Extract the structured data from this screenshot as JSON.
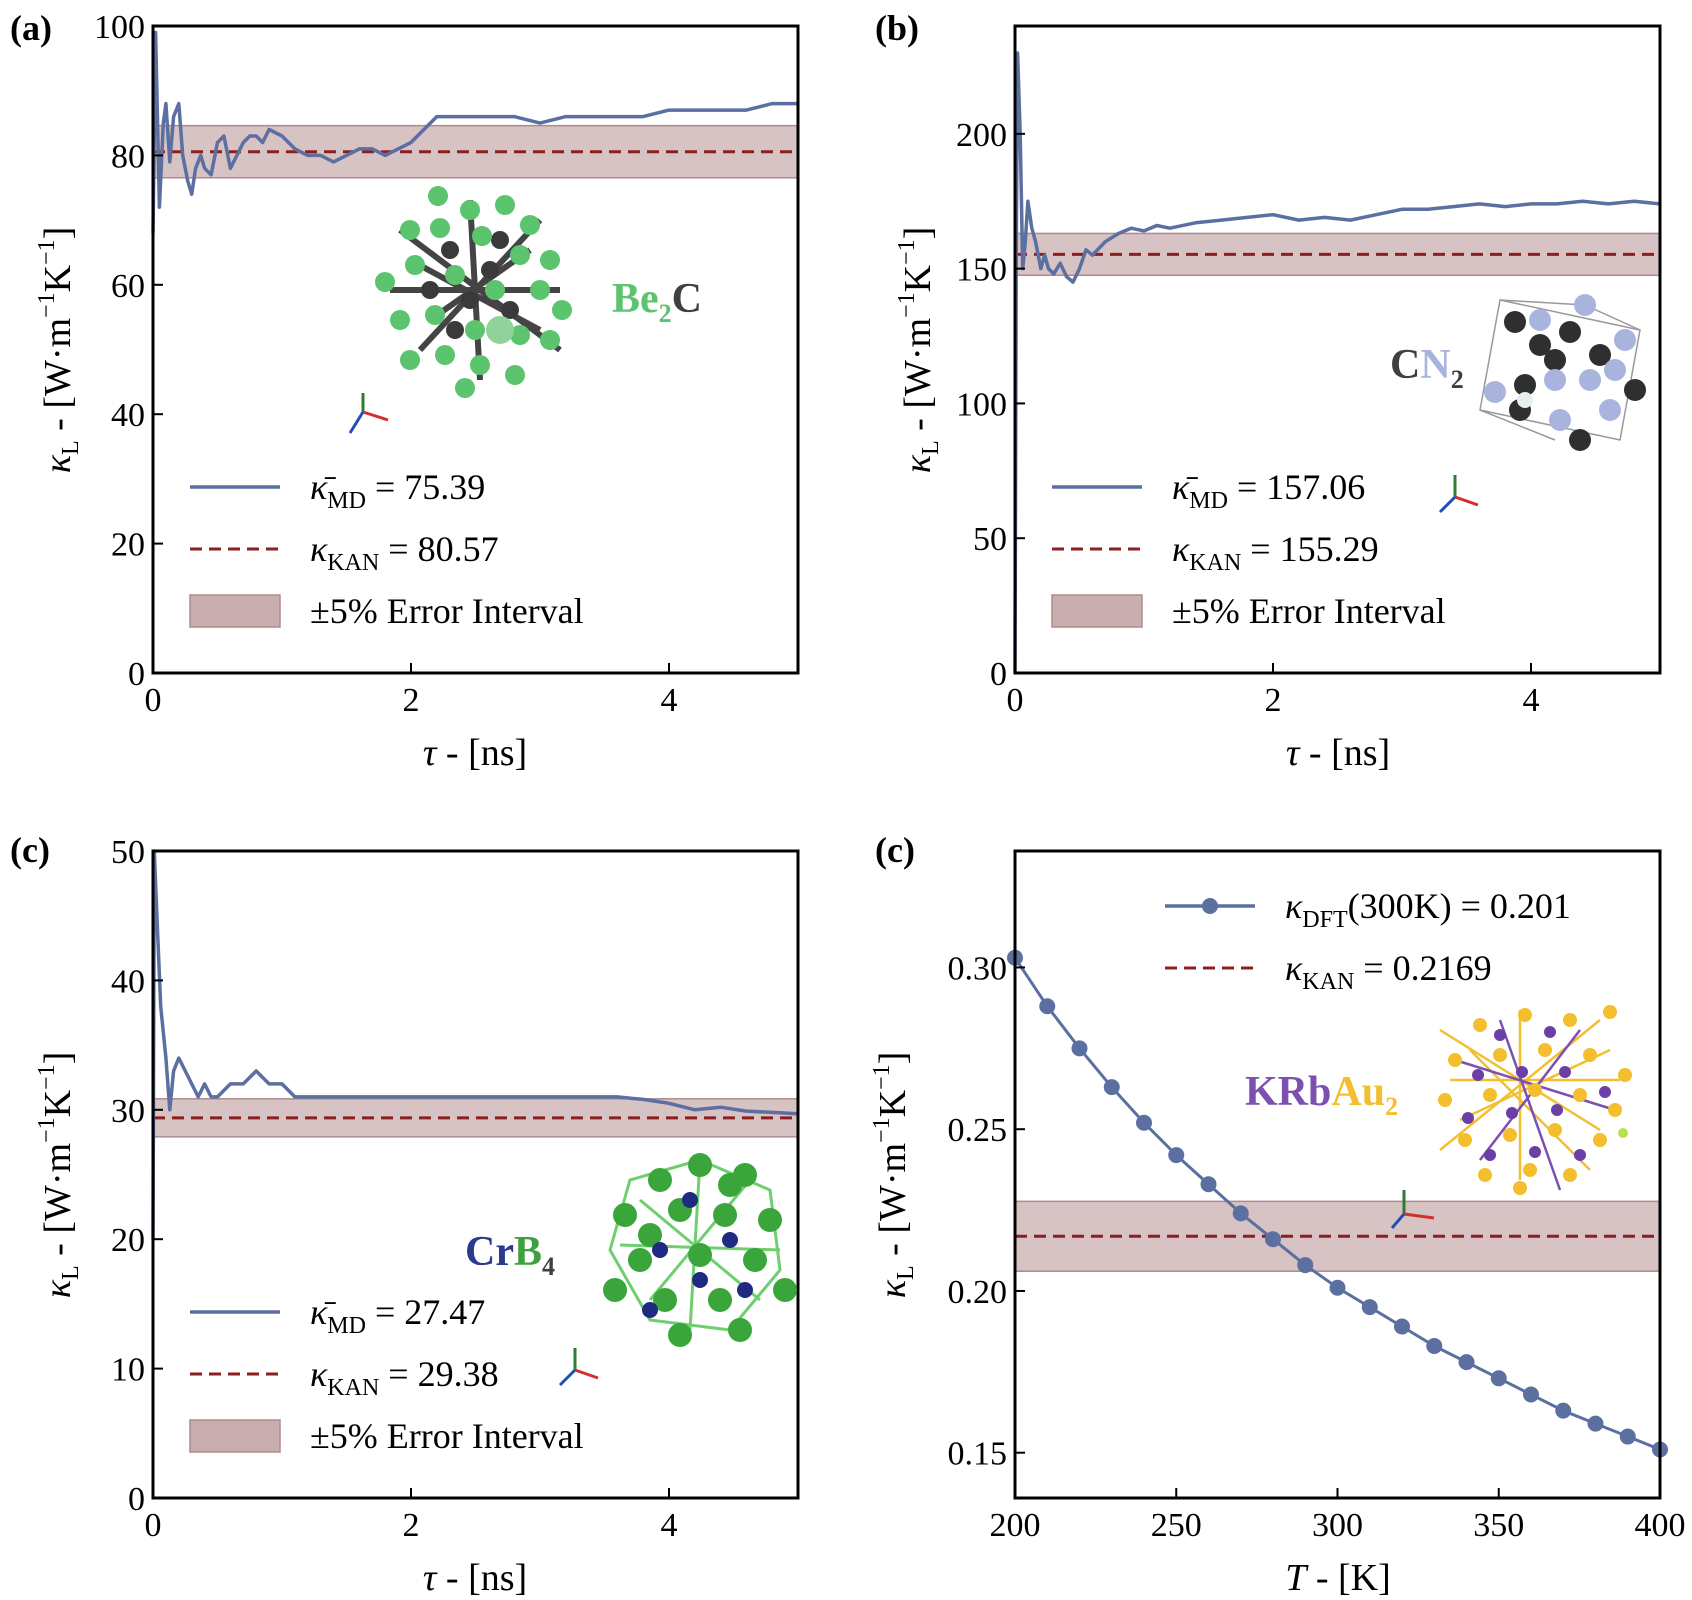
{
  "colors": {
    "md_line": "#5b6fa0",
    "kan_line": "#8b1f1f",
    "band_fill": "#c9aeb0",
    "band_stroke": "#b08a8d",
    "green_atom": "#5cc46f",
    "dark_atom": "#404040",
    "light_blue_atom": "#a9b4de",
    "purple_atom": "#7c4fb0",
    "gold_atom": "#f3bf2f"
  },
  "chart_data": [
    {
      "id": "a",
      "type": "line",
      "panel_label": "(a)",
      "xlabel_sym": "τ",
      "xlabel_rest": " - [ns]",
      "ylabel": "κL - [W·m−1K−1]",
      "xlim": [
        0,
        5
      ],
      "ylim": [
        0,
        100
      ],
      "xticks": [
        0,
        2,
        4
      ],
      "yticks": [
        0,
        20,
        40,
        60,
        80,
        100
      ],
      "xtick_labels": [
        "0",
        "2",
        "4"
      ],
      "ytick_labels": [
        "0",
        "20",
        "40",
        "60",
        "80",
        "100"
      ],
      "md_series": {
        "x": [
          0,
          0.02,
          0.05,
          0.08,
          0.1,
          0.13,
          0.16,
          0.2,
          0.23,
          0.27,
          0.3,
          0.33,
          0.37,
          0.4,
          0.45,
          0.5,
          0.55,
          0.6,
          0.65,
          0.7,
          0.75,
          0.8,
          0.85,
          0.9,
          1.0,
          1.1,
          1.2,
          1.3,
          1.4,
          1.5,
          1.6,
          1.7,
          1.8,
          1.9,
          2.0,
          2.1,
          2.2,
          2.4,
          2.6,
          2.8,
          3.0,
          3.2,
          3.4,
          3.6,
          3.8,
          4.0,
          4.2,
          4.4,
          4.6,
          4.8,
          5.0
        ],
        "y": [
          68,
          99,
          72,
          85,
          88,
          79,
          86,
          88,
          80,
          76,
          74,
          78,
          80,
          78,
          77,
          82,
          83,
          78,
          80,
          82,
          83,
          83,
          82,
          84,
          83,
          81,
          80,
          80,
          79,
          80,
          81,
          81,
          80,
          81,
          82,
          84,
          86,
          86,
          86,
          86,
          85,
          86,
          86,
          86,
          86,
          87,
          87,
          87,
          87,
          88,
          88
        ]
      },
      "kan_value": 80.57,
      "band": [
        76.54,
        84.6
      ],
      "legend": [
        {
          "kind": "line",
          "sym": "κ̄",
          "sub": "MD",
          "text": " = 75.39"
        },
        {
          "kind": "dash",
          "sym": "κ",
          "sub": "KAN",
          "text": " = 80.57"
        },
        {
          "kind": "band",
          "text": "±5% Error Interval"
        }
      ],
      "material": {
        "parts": [
          {
            "t": "Be",
            "c": "#5cc46f"
          },
          {
            "t": "2",
            "c": "#5cc46f",
            "sub": true
          },
          {
            "t": "C",
            "c": "#404040"
          }
        ]
      }
    },
    {
      "id": "b",
      "type": "line",
      "panel_label": "(b)",
      "xlabel_sym": "τ",
      "xlabel_rest": " - [ns]",
      "ylabel": "κL - [W·m−1K−1]",
      "xlim": [
        0,
        5
      ],
      "ylim": [
        0,
        240
      ],
      "xticks": [
        0,
        2,
        4
      ],
      "yticks": [
        0,
        50,
        100,
        150,
        200
      ],
      "xtick_labels": [
        "0",
        "2",
        "4"
      ],
      "ytick_labels": [
        "0",
        "50",
        "100",
        "150",
        "200"
      ],
      "md_series": {
        "x": [
          0,
          0.01,
          0.02,
          0.04,
          0.06,
          0.08,
          0.1,
          0.13,
          0.16,
          0.2,
          0.23,
          0.26,
          0.3,
          0.35,
          0.4,
          0.45,
          0.5,
          0.55,
          0.6,
          0.7,
          0.8,
          0.9,
          1.0,
          1.1,
          1.2,
          1.4,
          1.6,
          1.8,
          2.0,
          2.2,
          2.4,
          2.6,
          2.8,
          3.0,
          3.2,
          3.4,
          3.6,
          3.8,
          4.0,
          4.2,
          4.4,
          4.6,
          4.8,
          5.0
        ],
        "y": [
          0,
          160,
          230,
          200,
          150,
          160,
          175,
          165,
          160,
          150,
          155,
          150,
          148,
          152,
          147,
          145,
          150,
          157,
          155,
          160,
          163,
          165,
          164,
          166,
          165,
          167,
          168,
          169,
          170,
          168,
          169,
          168,
          170,
          172,
          172,
          173,
          174,
          173,
          174,
          174,
          175,
          174,
          175,
          174
        ]
      },
      "kan_value": 155.29,
      "band": [
        147.53,
        163.05
      ],
      "legend": [
        {
          "kind": "line",
          "sym": "κ̄",
          "sub": "MD",
          "text": " = 157.06"
        },
        {
          "kind": "dash",
          "sym": "κ",
          "sub": "KAN",
          "text": " = 155.29"
        },
        {
          "kind": "band",
          "text": "±5% Error Interval"
        }
      ],
      "material": {
        "parts": [
          {
            "t": "C",
            "c": "#404040"
          },
          {
            "t": "N",
            "c": "#a9b4de"
          },
          {
            "t": "2",
            "c": "#404040",
            "sub": true
          }
        ]
      }
    },
    {
      "id": "c",
      "type": "line",
      "panel_label": "(c)",
      "xlabel_sym": "τ",
      "xlabel_rest": " - [ns]",
      "ylabel": "κL - [W·m−1K−1]",
      "xlim": [
        0,
        5
      ],
      "ylim": [
        0,
        50
      ],
      "xticks": [
        0,
        2,
        4
      ],
      "yticks": [
        0,
        10,
        20,
        30,
        40,
        50
      ],
      "xtick_labels": [
        "0",
        "2",
        "4"
      ],
      "ytick_labels": [
        "0",
        "10",
        "20",
        "30",
        "40",
        "50"
      ],
      "md_series": {
        "x": [
          0,
          0.01,
          0.03,
          0.06,
          0.1,
          0.13,
          0.16,
          0.2,
          0.25,
          0.3,
          0.35,
          0.4,
          0.45,
          0.5,
          0.6,
          0.7,
          0.8,
          0.9,
          1.0,
          1.1,
          1.2,
          1.4,
          1.6,
          1.8,
          2.0,
          2.2,
          2.4,
          2.6,
          2.8,
          3.0,
          3.2,
          3.4,
          3.6,
          3.8,
          4.0,
          4.2,
          4.4,
          4.6,
          4.8,
          5.0
        ],
        "y": [
          20,
          50,
          45,
          38,
          34,
          30,
          33,
          34,
          33,
          32,
          31,
          32,
          31,
          31,
          32,
          32,
          33,
          32,
          32,
          31,
          31,
          31,
          31,
          31,
          31,
          31,
          31,
          31,
          31,
          31,
          31,
          31,
          31,
          30.8,
          30.5,
          30,
          30.2,
          29.9,
          29.8,
          29.7
        ]
      },
      "kan_value": 29.38,
      "band": [
        27.91,
        30.85
      ],
      "legend": [
        {
          "kind": "line",
          "sym": "κ̄",
          "sub": "MD",
          "text": " = 27.47"
        },
        {
          "kind": "dash",
          "sym": "κ",
          "sub": "KAN",
          "text": " = 29.38"
        },
        {
          "kind": "band",
          "text": "±5% Error Interval"
        }
      ],
      "material": {
        "parts": [
          {
            "t": "Cr",
            "c": "#2b3a8c"
          },
          {
            "t": "B",
            "c": "#3fa03f"
          },
          {
            "t": "4",
            "c": "#404040",
            "sub": true
          }
        ]
      }
    },
    {
      "id": "d",
      "type": "line",
      "panel_label": "(c)",
      "xlabel_sym": "T",
      "xlabel_rest": " - [K]",
      "ylabel": "κL - [W·m−1K−1]",
      "xlim": [
        200,
        400
      ],
      "ylim": [
        0.136,
        0.336
      ],
      "xticks": [
        200,
        250,
        300,
        350,
        400
      ],
      "yticks": [
        0.15,
        0.2,
        0.25,
        0.3
      ],
      "xtick_labels": [
        "200",
        "250",
        "300",
        "350",
        "400"
      ],
      "ytick_labels": [
        "0.15",
        "0.20",
        "0.25",
        "0.30"
      ],
      "dft_series": {
        "x": [
          200,
          210,
          220,
          230,
          240,
          250,
          260,
          270,
          280,
          290,
          300,
          310,
          320,
          330,
          340,
          350,
          360,
          370,
          380,
          390,
          400
        ],
        "y": [
          0.303,
          0.288,
          0.275,
          0.263,
          0.252,
          0.242,
          0.233,
          0.224,
          0.216,
          0.208,
          0.201,
          0.195,
          0.189,
          0.183,
          0.178,
          0.173,
          0.168,
          0.163,
          0.159,
          0.155,
          0.151
        ]
      },
      "kan_value": 0.2169,
      "band": [
        0.2061,
        0.2277
      ],
      "legend": [
        {
          "kind": "marker",
          "sym": "κ",
          "sub": "DFT",
          "text": "(300K) = 0.201"
        },
        {
          "kind": "dash",
          "sym": "κ",
          "sub": "KAN",
          "text": " = 0.2169"
        }
      ],
      "material": {
        "parts": [
          {
            "t": "KRb",
            "c": "#7c4fb0"
          },
          {
            "t": "Au",
            "c": "#f3bf2f"
          },
          {
            "t": "2",
            "c": "#f3bf2f",
            "sub": true
          }
        ]
      }
    }
  ]
}
